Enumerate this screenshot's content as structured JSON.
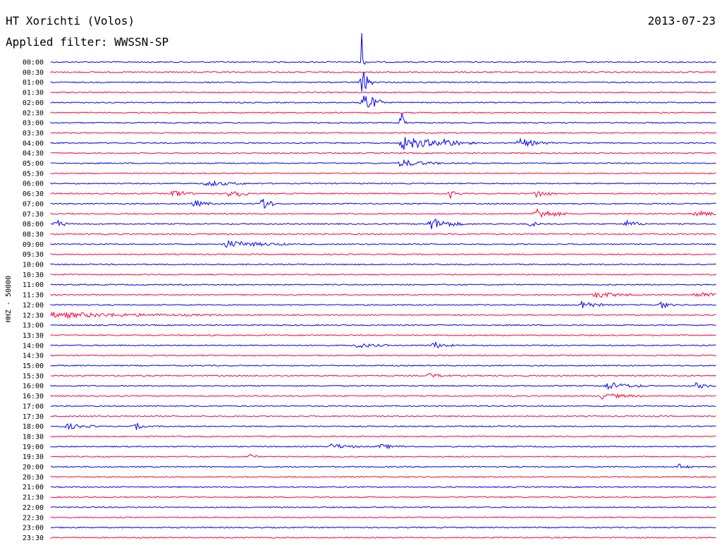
{
  "header": {
    "station": "HT Xorichti (Volos)",
    "date": "2013-07-23",
    "filter": "Applied filter: WWSSN-SP"
  },
  "chart_data": {
    "type": "line",
    "ylabel": "HHZ - 50000",
    "row_labels": [
      "00:00",
      "00:30",
      "01:00",
      "01:30",
      "02:00",
      "02:30",
      "03:00",
      "03:30",
      "04:00",
      "04:30",
      "05:00",
      "05:30",
      "06:00",
      "06:30",
      "07:00",
      "07:30",
      "08:00",
      "08:30",
      "09:00",
      "09:30",
      "10:00",
      "10:30",
      "11:00",
      "11:30",
      "12:00",
      "12:30",
      "13:00",
      "13:30",
      "14:00",
      "14:30",
      "15:00",
      "15:30",
      "16:00",
      "16:30",
      "17:00",
      "17:30",
      "18:00",
      "18:30",
      "19:00",
      "19:30",
      "20:00",
      "20:30",
      "21:00",
      "21:30",
      "22:00",
      "22:30",
      "23:00",
      "23:30"
    ],
    "colors": [
      "#0000ff",
      "#ff0040"
    ],
    "row_minutes": 30,
    "events": [
      {
        "row": 0,
        "minute": 14.0,
        "amp": 6.0,
        "dur": 0.2
      },
      {
        "row": 2,
        "minute": 14.0,
        "amp": 4.0,
        "dur": 0.5
      },
      {
        "row": 4,
        "minute": 14.0,
        "amp": 3.0,
        "dur": 1.0
      },
      {
        "row": 6,
        "minute": 15.8,
        "amp": 3.0,
        "dur": 0.3
      },
      {
        "row": 8,
        "minute": 15.8,
        "amp": 1.5,
        "dur": 3.0
      },
      {
        "row": 8,
        "minute": 17.7,
        "amp": 1.0,
        "dur": 1.5
      },
      {
        "row": 8,
        "minute": 21.1,
        "amp": 1.0,
        "dur": 1.5
      },
      {
        "row": 10,
        "minute": 15.7,
        "amp": 0.8,
        "dur": 2.0
      },
      {
        "row": 12,
        "minute": 7.0,
        "amp": 0.6,
        "dur": 2.0
      },
      {
        "row": 13,
        "minute": 5.5,
        "amp": 1.0,
        "dur": 1.0
      },
      {
        "row": 13,
        "minute": 8.1,
        "amp": 1.8,
        "dur": 0.8
      },
      {
        "row": 13,
        "minute": 18.0,
        "amp": 1.0,
        "dur": 0.5
      },
      {
        "row": 13,
        "minute": 21.8,
        "amp": 1.0,
        "dur": 1.0
      },
      {
        "row": 14,
        "minute": 6.4,
        "amp": 0.8,
        "dur": 1.0
      },
      {
        "row": 14,
        "minute": 9.5,
        "amp": 2.5,
        "dur": 0.6
      },
      {
        "row": 15,
        "minute": 21.8,
        "amp": 1.4,
        "dur": 1.5
      },
      {
        "row": 15,
        "minute": 29.0,
        "amp": 0.6,
        "dur": 2.0
      },
      {
        "row": 16,
        "minute": 0.2,
        "amp": 1.2,
        "dur": 0.6
      },
      {
        "row": 16,
        "minute": 17.1,
        "amp": 1.5,
        "dur": 1.5
      },
      {
        "row": 16,
        "minute": 21.6,
        "amp": 0.8,
        "dur": 0.5
      },
      {
        "row": 16,
        "minute": 25.9,
        "amp": 0.8,
        "dur": 1.0
      },
      {
        "row": 18,
        "minute": 7.8,
        "amp": 0.8,
        "dur": 3.0
      },
      {
        "row": 23,
        "minute": 24.5,
        "amp": 0.7,
        "dur": 2.0
      },
      {
        "row": 23,
        "minute": 29.0,
        "amp": 0.7,
        "dur": 2.0
      },
      {
        "row": 24,
        "minute": 23.9,
        "amp": 1.2,
        "dur": 1.0
      },
      {
        "row": 24,
        "minute": 27.5,
        "amp": 0.9,
        "dur": 0.6
      },
      {
        "row": 25,
        "minute": 0.0,
        "amp": 0.6,
        "dur": 8.0
      },
      {
        "row": 28,
        "minute": 13.7,
        "amp": 0.6,
        "dur": 1.5
      },
      {
        "row": 28,
        "minute": 17.2,
        "amp": 0.8,
        "dur": 1.0
      },
      {
        "row": 31,
        "minute": 17.0,
        "amp": 0.6,
        "dur": 1.0
      },
      {
        "row": 32,
        "minute": 25.0,
        "amp": 0.8,
        "dur": 2.0
      },
      {
        "row": 32,
        "minute": 29.0,
        "amp": 0.7,
        "dur": 1.0
      },
      {
        "row": 33,
        "minute": 24.8,
        "amp": 0.6,
        "dur": 2.0
      },
      {
        "row": 36,
        "minute": 0.7,
        "amp": 0.6,
        "dur": 1.5
      },
      {
        "row": 36,
        "minute": 3.8,
        "amp": 0.9,
        "dur": 0.5
      },
      {
        "row": 38,
        "minute": 12.6,
        "amp": 0.6,
        "dur": 1.5
      },
      {
        "row": 38,
        "minute": 14.8,
        "amp": 0.5,
        "dur": 1.5
      },
      {
        "row": 39,
        "minute": 9.0,
        "amp": 0.8,
        "dur": 0.3
      },
      {
        "row": 40,
        "minute": 28.2,
        "amp": 0.8,
        "dur": 0.8
      }
    ]
  }
}
